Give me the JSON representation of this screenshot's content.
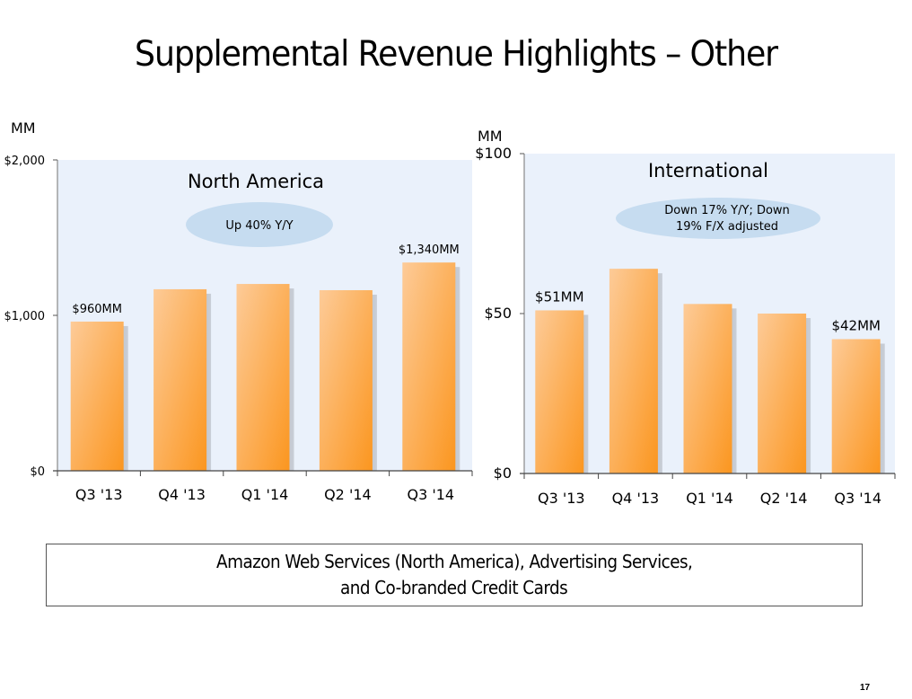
{
  "slide": {
    "title": "Supplemental Revenue Highlights – Other",
    "footnote_lines": [
      "Amazon Web Services (North America), Advertising Services,",
      "and Co-branded Credit Cards"
    ],
    "page_number": "17"
  },
  "colors": {
    "plot_background": "#eaf1fb",
    "bar_light": "#fdc993",
    "bar_dark": "#fb9a2a",
    "bar_shadow": "#8a8f99",
    "bubble": "#c6dcf0",
    "axis": "#555555"
  },
  "chart_data": [
    {
      "type": "bar",
      "title": "North America",
      "annotation": "Up 40% Y/Y",
      "unit_label": "MM",
      "categories": [
        "Q3 '13",
        "Q4 '13",
        "Q1 '14",
        "Q2 '14",
        "Q3 '14"
      ],
      "values": [
        960,
        1168,
        1202,
        1162,
        1340
      ],
      "data_labels": [
        "$960MM",
        "",
        "",
        "",
        "$1,340MM"
      ],
      "xlabel": "",
      "ylabel": "MM",
      "ylim": [
        0,
        2000
      ],
      "yticks": [
        0,
        1000,
        2000
      ],
      "ytick_labels": [
        "$0",
        "$1,000",
        "$2,000"
      ],
      "grid": false,
      "legend": "none"
    },
    {
      "type": "bar",
      "title": "International",
      "annotation": [
        "Down 17% Y/Y; Down",
        "19% F/X adjusted"
      ],
      "unit_label": "MM",
      "categories": [
        "Q3 '13",
        "Q4 '13",
        "Q1 '14",
        "Q2 '14",
        "Q3 '14"
      ],
      "values": [
        51,
        64,
        53,
        50,
        42
      ],
      "data_labels": [
        "$51MM",
        "",
        "",
        "",
        "$42MM"
      ],
      "xlabel": "",
      "ylabel": "MM",
      "ylim": [
        0,
        100
      ],
      "yticks": [
        0,
        50,
        100
      ],
      "ytick_labels": [
        "$0",
        "$50",
        "$100"
      ],
      "grid": false,
      "legend": "none"
    }
  ]
}
